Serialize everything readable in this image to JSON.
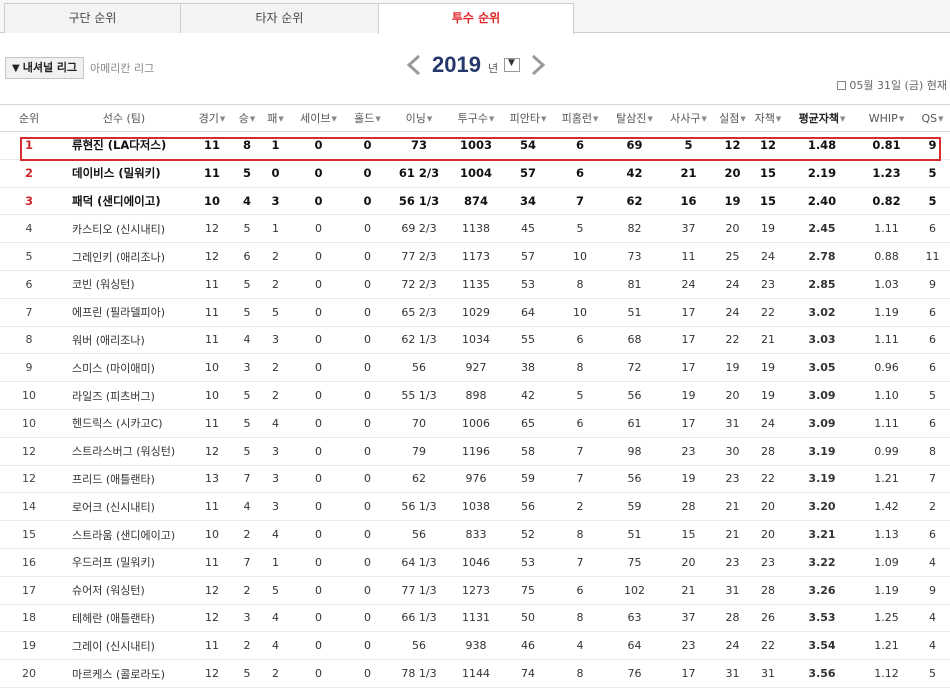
{
  "tabs": [
    {
      "label": "구단 순위"
    },
    {
      "label": "타자 순위"
    },
    {
      "label": "투수 순위"
    }
  ],
  "league": {
    "selected": "내셔널 리그",
    "other": "아메리칸 리그"
  },
  "year": {
    "value": "2019",
    "unit": "년"
  },
  "date_info": "05월 31일 (금) 현재",
  "columns": [
    "순위",
    "선수 (팀)",
    "경기",
    "승",
    "패",
    "세이브",
    "홀드",
    "이닝",
    "투구수",
    "피안타",
    "피홈런",
    "탈삼진",
    "사사구",
    "실점",
    "자책",
    "평균자책",
    "WHIP",
    "QS"
  ],
  "sortable": [
    false,
    false,
    true,
    true,
    true,
    true,
    true,
    true,
    true,
    true,
    true,
    true,
    true,
    true,
    true,
    true,
    true,
    true
  ],
  "sorted_column": "평균자책",
  "highlight_color": "#d72b2f",
  "rank_top_color": "#d1262b",
  "rows": [
    [
      "1",
      "류현진 (LA다저스)",
      "11",
      "8",
      "1",
      "0",
      "0",
      "73",
      "1003",
      "54",
      "6",
      "69",
      "5",
      "12",
      "12",
      "1.48",
      "0.81",
      "9"
    ],
    [
      "2",
      "데이비스 (밀워키)",
      "11",
      "5",
      "0",
      "0",
      "0",
      "61 2/3",
      "1004",
      "57",
      "6",
      "42",
      "21",
      "20",
      "15",
      "2.19",
      "1.23",
      "5"
    ],
    [
      "3",
      "패덕 (샌디에이고)",
      "10",
      "4",
      "3",
      "0",
      "0",
      "56 1/3",
      "874",
      "34",
      "7",
      "62",
      "16",
      "19",
      "15",
      "2.40",
      "0.82",
      "5"
    ],
    [
      "4",
      "카스티오 (신시내티)",
      "12",
      "5",
      "1",
      "0",
      "0",
      "69 2/3",
      "1138",
      "45",
      "5",
      "82",
      "37",
      "20",
      "19",
      "2.45",
      "1.11",
      "6"
    ],
    [
      "5",
      "그레인키 (애리조나)",
      "12",
      "6",
      "2",
      "0",
      "0",
      "77 2/3",
      "1173",
      "57",
      "10",
      "73",
      "11",
      "25",
      "24",
      "2.78",
      "0.88",
      "11"
    ],
    [
      "6",
      "코빈 (워싱턴)",
      "11",
      "5",
      "2",
      "0",
      "0",
      "72 2/3",
      "1135",
      "53",
      "8",
      "81",
      "24",
      "24",
      "23",
      "2.85",
      "1.03",
      "9"
    ],
    [
      "7",
      "에프린 (필라델피아)",
      "11",
      "5",
      "5",
      "0",
      "0",
      "65 2/3",
      "1029",
      "64",
      "10",
      "51",
      "17",
      "24",
      "22",
      "3.02",
      "1.19",
      "6"
    ],
    [
      "8",
      "워버 (애리조나)",
      "11",
      "4",
      "3",
      "0",
      "0",
      "62 1/3",
      "1034",
      "55",
      "6",
      "68",
      "17",
      "22",
      "21",
      "3.03",
      "1.11",
      "6"
    ],
    [
      "9",
      "스미스 (마이애미)",
      "10",
      "3",
      "2",
      "0",
      "0",
      "56",
      "927",
      "38",
      "8",
      "72",
      "17",
      "19",
      "19",
      "3.05",
      "0.96",
      "6"
    ],
    [
      "10",
      "라일즈 (피츠버그)",
      "10",
      "5",
      "2",
      "0",
      "0",
      "55 1/3",
      "898",
      "42",
      "5",
      "56",
      "19",
      "20",
      "19",
      "3.09",
      "1.10",
      "5"
    ],
    [
      "10",
      "헨드릭스 (시카고C)",
      "11",
      "5",
      "4",
      "0",
      "0",
      "70",
      "1006",
      "65",
      "6",
      "61",
      "17",
      "31",
      "24",
      "3.09",
      "1.11",
      "6"
    ],
    [
      "12",
      "스트라스버그 (워싱턴)",
      "12",
      "5",
      "3",
      "0",
      "0",
      "79",
      "1196",
      "58",
      "7",
      "98",
      "23",
      "30",
      "28",
      "3.19",
      "0.99",
      "8"
    ],
    [
      "12",
      "프리드 (애틀랜타)",
      "13",
      "7",
      "3",
      "0",
      "0",
      "62",
      "976",
      "59",
      "7",
      "56",
      "19",
      "23",
      "22",
      "3.19",
      "1.21",
      "7"
    ],
    [
      "14",
      "로어크 (신시내티)",
      "11",
      "4",
      "3",
      "0",
      "0",
      "56 1/3",
      "1038",
      "56",
      "2",
      "59",
      "28",
      "21",
      "20",
      "3.20",
      "1.42",
      "2"
    ],
    [
      "15",
      "스트라움 (샌디에이고)",
      "10",
      "2",
      "4",
      "0",
      "0",
      "56",
      "833",
      "52",
      "8",
      "51",
      "15",
      "21",
      "20",
      "3.21",
      "1.13",
      "6"
    ],
    [
      "16",
      "우드러프 (밀워키)",
      "11",
      "7",
      "1",
      "0",
      "0",
      "64 1/3",
      "1046",
      "53",
      "7",
      "75",
      "20",
      "23",
      "23",
      "3.22",
      "1.09",
      "4"
    ],
    [
      "17",
      "슈어저 (워싱턴)",
      "12",
      "2",
      "5",
      "0",
      "0",
      "77 1/3",
      "1273",
      "75",
      "6",
      "102",
      "21",
      "31",
      "28",
      "3.26",
      "1.19",
      "9"
    ],
    [
      "18",
      "테헤란 (애틀랜타)",
      "12",
      "3",
      "4",
      "0",
      "0",
      "66 1/3",
      "1131",
      "50",
      "8",
      "63",
      "37",
      "28",
      "26",
      "3.53",
      "1.25",
      "4"
    ],
    [
      "19",
      "그레이 (신시내티)",
      "11",
      "2",
      "4",
      "0",
      "0",
      "56",
      "938",
      "46",
      "4",
      "64",
      "23",
      "24",
      "22",
      "3.54",
      "1.21",
      "4"
    ],
    [
      "20",
      "마르케스 (콜로라도)",
      "12",
      "5",
      "2",
      "0",
      "0",
      "78 1/3",
      "1144",
      "74",
      "8",
      "76",
      "17",
      "31",
      "31",
      "3.56",
      "1.12",
      "5"
    ]
  ]
}
